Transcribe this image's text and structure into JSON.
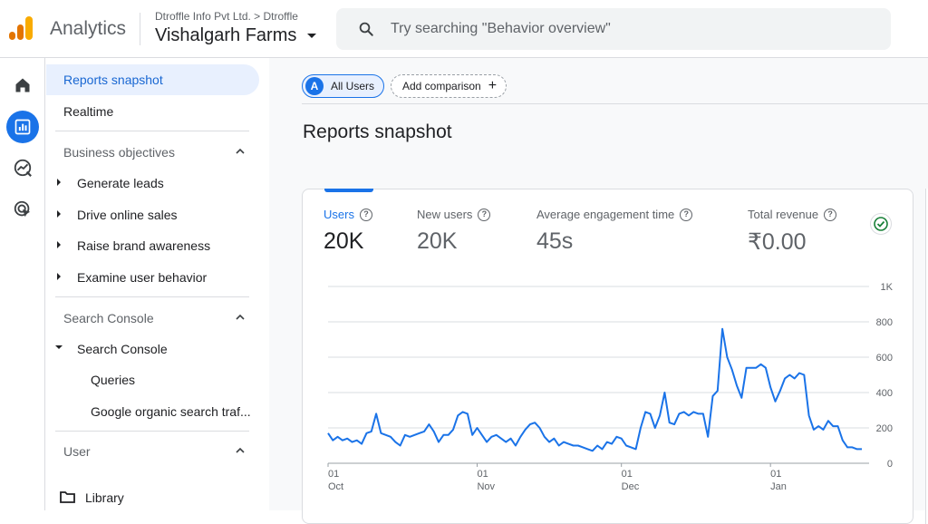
{
  "header": {
    "app_name": "Analytics",
    "account_crumb": "Dtroffle Info Pvt Ltd. > Dtroffle",
    "property_name": "Vishalgarh Farms",
    "search_placeholder": "Try searching \"Behavior overview\""
  },
  "rail": {
    "items": [
      {
        "icon": "home-icon",
        "active": false
      },
      {
        "icon": "reports-icon",
        "active": true
      },
      {
        "icon": "explore-icon",
        "active": false
      },
      {
        "icon": "advertising-icon",
        "active": false
      }
    ]
  },
  "nav": {
    "reports_snapshot": "Reports snapshot",
    "realtime": "Realtime",
    "business_objectives": {
      "title": "Business objectives",
      "items": [
        "Generate leads",
        "Drive online sales",
        "Raise brand awareness",
        "Examine user behavior"
      ]
    },
    "search_console": {
      "title": "Search Console",
      "group": "Search Console",
      "items": [
        "Queries",
        "Google organic search traf..."
      ]
    },
    "user": {
      "title": "User"
    },
    "library": "Library"
  },
  "toolbar": {
    "all_users_avatar": "A",
    "all_users": "All Users",
    "add_comparison": "Add comparison"
  },
  "page": {
    "title": "Reports snapshot"
  },
  "metrics": [
    {
      "label": "Users",
      "value": "20K",
      "selected": true
    },
    {
      "label": "New users",
      "value": "20K",
      "selected": false
    },
    {
      "label": "Average engagement time",
      "value": "45s",
      "selected": false
    },
    {
      "label": "Total revenue",
      "value": "₹0.00",
      "selected": false
    }
  ],
  "colors": {
    "accent": "#1a73e8",
    "line": "#1a73e8",
    "grid": "#dadce0"
  },
  "chart_data": {
    "type": "line",
    "title": "",
    "xlabel": "",
    "ylabel": "",
    "ylim": [
      0,
      1000
    ],
    "y_ticks": [
      "0",
      "200",
      "400",
      "600",
      "800",
      "1K"
    ],
    "y_tick_values": [
      0,
      200,
      400,
      600,
      800,
      1000
    ],
    "x_tick_labels": [
      {
        "day": "01",
        "month": "Oct",
        "index": 0
      },
      {
        "day": "01",
        "month": "Nov",
        "index": 31
      },
      {
        "day": "01",
        "month": "Dec",
        "index": 61
      },
      {
        "day": "01",
        "month": "Jan",
        "index": 92
      }
    ],
    "grid": true,
    "series": [
      {
        "values": [
          170,
          130,
          150,
          130,
          140,
          120,
          130,
          110,
          170,
          180,
          280,
          170,
          160,
          150,
          120,
          100,
          160,
          150,
          160,
          170,
          180,
          220,
          180,
          120,
          160,
          160,
          190,
          270,
          290,
          280,
          160,
          200,
          160,
          120,
          150,
          160,
          140,
          120,
          140,
          100,
          150,
          190,
          220,
          230,
          200,
          150,
          120,
          140,
          100,
          120,
          110,
          100,
          100,
          90,
          80,
          70,
          100,
          80,
          120,
          110,
          150,
          140,
          100,
          90,
          80,
          200,
          290,
          280,
          200,
          270,
          400,
          230,
          220,
          280,
          290,
          270,
          290,
          280,
          280,
          150,
          380,
          410,
          760,
          600,
          530,
          440,
          370,
          540,
          540,
          540,
          560,
          540,
          430,
          350,
          410,
          480,
          500,
          480,
          510,
          500,
          270,
          190,
          210,
          190,
          240,
          210,
          210,
          130,
          90,
          90,
          80,
          80
        ]
      }
    ]
  }
}
